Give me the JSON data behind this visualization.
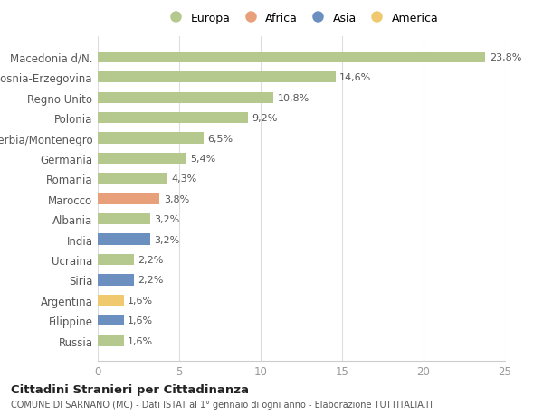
{
  "categories": [
    "Macedonia d/N.",
    "Bosnia-Erzegovina",
    "Regno Unito",
    "Polonia",
    "Serbia/Montenegro",
    "Germania",
    "Romania",
    "Marocco",
    "Albania",
    "India",
    "Ucraina",
    "Siria",
    "Argentina",
    "Filippine",
    "Russia"
  ],
  "values": [
    23.8,
    14.6,
    10.8,
    9.2,
    6.5,
    5.4,
    4.3,
    3.8,
    3.2,
    3.2,
    2.2,
    2.2,
    1.6,
    1.6,
    1.6
  ],
  "labels": [
    "23,8%",
    "14,6%",
    "10,8%",
    "9,2%",
    "6,5%",
    "5,4%",
    "4,3%",
    "3,8%",
    "3,2%",
    "3,2%",
    "2,2%",
    "2,2%",
    "1,6%",
    "1,6%",
    "1,6%"
  ],
  "colors": [
    "#b5c98e",
    "#b5c98e",
    "#b5c98e",
    "#b5c98e",
    "#b5c98e",
    "#b5c98e",
    "#b5c98e",
    "#e8a07a",
    "#b5c98e",
    "#6b8fbf",
    "#b5c98e",
    "#6b8fbf",
    "#f0c96e",
    "#6b8fbf",
    "#b5c98e"
  ],
  "legend_labels": [
    "Europa",
    "Africa",
    "Asia",
    "America"
  ],
  "legend_colors": [
    "#b5c98e",
    "#e8a07a",
    "#6b8fbf",
    "#f0c96e"
  ],
  "title": "Cittadini Stranieri per Cittadinanza",
  "subtitle": "COMUNE DI SARNANO (MC) - Dati ISTAT al 1° gennaio di ogni anno - Elaborazione TUTTITALIA.IT",
  "xlim": [
    0,
    25
  ],
  "xticks": [
    0,
    5,
    10,
    15,
    20,
    25
  ],
  "background_color": "#ffffff",
  "plot_bg_color": "#ffffff",
  "bar_height": 0.55
}
